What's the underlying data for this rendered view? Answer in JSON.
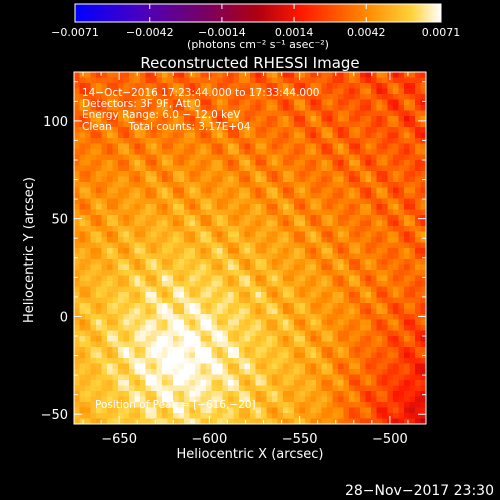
{
  "chart_data": {
    "type": "heatmap",
    "title": "Reconstructed RHESSI Image",
    "xlabel": "Heliocentric X (arcsec)",
    "ylabel": "Heliocentric Y (arcsec)",
    "xlim": [
      -675,
      -480
    ],
    "ylim": [
      -55,
      125
    ],
    "xticks": [
      -650,
      -600,
      -550,
      -500
    ],
    "yticks": [
      -50,
      0,
      50,
      100
    ],
    "xtick_labels": [
      "−650",
      "−600",
      "−550",
      "−500"
    ],
    "ytick_labels": [
      "−50",
      "0",
      "50",
      "100"
    ],
    "colorbar": {
      "label": "(photons cm⁻² s⁻¹ asec⁻²)",
      "range": [
        -0.0071,
        0.0071
      ],
      "tick_values": [
        -0.0071,
        -0.0042,
        -0.0014,
        0.0014,
        0.0042,
        0.0071
      ],
      "tick_labels": [
        "−0.0071",
        "−0.0042",
        "−0.0014",
        "0.0014",
        "0.0042",
        "0.0071"
      ]
    },
    "annotations": [
      "14−Oct−2016 17:23:44.000 to 17:33:44.000",
      "Detectors: 3F 9F, Att 0",
      "Energy Range: 6.0 − 12.0 keV",
      "Clean     Total counts: 3.17E+04"
    ],
    "peak_label": "Position of Peak = [−616,−20]",
    "peak": [
      -616,
      -20
    ],
    "grid": false
  },
  "footer": {
    "timestamp": "28−Nov−2017 23:30"
  }
}
